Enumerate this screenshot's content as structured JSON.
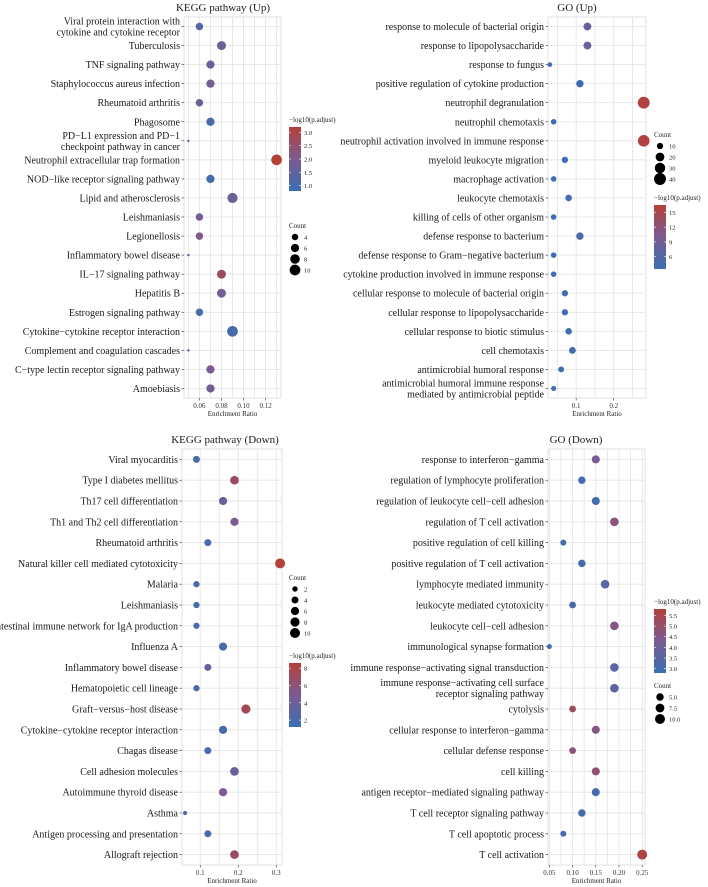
{
  "colors": {
    "low": "#3b6fb0",
    "mid": "#7b5b92",
    "high": "#b5403a",
    "grid": "#e5e5e5",
    "panel": "#ffffff"
  },
  "chart_data": [
    {
      "type": "scatter",
      "title": "KEGG pathway (Up)",
      "xlabel": "Enrichment Ratio",
      "xlim": [
        0.046,
        0.134
      ],
      "xticks": [
        0.06,
        0.08,
        0.1,
        0.12
      ],
      "xtick_labels": [
        "0.06",
        "0.08",
        "0.10",
        "0.12"
      ],
      "color_legend": {
        "title": "−log10(p.adjust)",
        "ticks": [
          "3.0",
          "2.5",
          "2.0",
          "1.5",
          "1.0"
        ],
        "min": 0.8,
        "max": 3.2
      },
      "size_legend": {
        "title": "Count",
        "values": [
          4,
          6,
          8,
          10
        ],
        "labels": [
          "4",
          "6",
          "8",
          "10"
        ],
        "min": 2,
        "max": 11
      },
      "points": [
        {
          "label": "Viral protein interaction with\ncytokine and cytokine receptor",
          "x": 0.06,
          "count": 5,
          "color": 1.3
        },
        {
          "label": "Tuberculosis",
          "x": 0.08,
          "count": 7,
          "color": 1.7
        },
        {
          "label": "TNF signaling pathway",
          "x": 0.07,
          "count": 6,
          "color": 1.8
        },
        {
          "label": "Staphylococcus aureus infection",
          "x": 0.07,
          "count": 6,
          "color": 1.9
        },
        {
          "label": "Rheumatoid arthritis",
          "x": 0.06,
          "count": 5,
          "color": 1.7
        },
        {
          "label": "Phagosome",
          "x": 0.07,
          "count": 6,
          "color": 1.1
        },
        {
          "label": "PD−L1 expression and PD−1\ncheckpoint pathway in cancer",
          "x": 0.05,
          "count": 2,
          "color": 1.0
        },
        {
          "label": "Neutrophil extracellular trap formation",
          "x": 0.13,
          "count": 10,
          "color": 3.2
        },
        {
          "label": "NOD−like receptor signaling pathway",
          "x": 0.07,
          "count": 6,
          "color": 1.0
        },
        {
          "label": "Lipid and atherosclerosis",
          "x": 0.09,
          "count": 9,
          "color": 1.7
        },
        {
          "label": "Leishmaniasis",
          "x": 0.06,
          "count": 5,
          "color": 1.9
        },
        {
          "label": "Legionellosis",
          "x": 0.06,
          "count": 5,
          "color": 2.1
        },
        {
          "label": "Inflammatory bowel disease",
          "x": 0.05,
          "count": 2,
          "color": 1.6
        },
        {
          "label": "IL−17 signaling pathway",
          "x": 0.08,
          "count": 7,
          "color": 2.7
        },
        {
          "label": "Hepatitis B",
          "x": 0.08,
          "count": 7,
          "color": 1.9
        },
        {
          "label": "Estrogen signaling pathway",
          "x": 0.06,
          "count": 5,
          "color": 1.0
        },
        {
          "label": "Cytokine−cytokine receptor interaction",
          "x": 0.09,
          "count": 10,
          "color": 1.0
        },
        {
          "label": "Complement and coagulation cascades",
          "x": 0.05,
          "count": 2,
          "color": 1.0
        },
        {
          "label": "C−type lectin receptor signaling pathway",
          "x": 0.07,
          "count": 6,
          "color": 2.0
        },
        {
          "label": "Amoebiasis",
          "x": 0.07,
          "count": 6,
          "color": 1.8
        }
      ]
    },
    {
      "type": "scatter",
      "title": "GO (Up)",
      "xlabel": "Enrichment Ratio",
      "xlim": [
        0.025,
        0.286
      ],
      "xticks": [
        0.1,
        0.2
      ],
      "xtick_labels": [
        "0.1",
        "0.2"
      ],
      "color_legend": {
        "title": "−log10(p.adjust)",
        "ticks": [
          "15",
          "12",
          "9",
          "6"
        ],
        "min": 3.5,
        "max": 16.5
      },
      "size_legend": {
        "title": "Count",
        "values": [
          10,
          20,
          30,
          40
        ],
        "labels": [
          "10",
          "20",
          "30",
          "40"
        ],
        "min": 4,
        "max": 44
      },
      "points": [
        {
          "label": "response to molecule of bacterial origin",
          "x": 0.13,
          "count": 16,
          "color": 8
        },
        {
          "label": "response to lipopolysaccharide",
          "x": 0.13,
          "count": 16,
          "color": 8
        },
        {
          "label": "response to fungus",
          "x": 0.03,
          "count": 6,
          "color": 4
        },
        {
          "label": "positive regulation of cytokine production",
          "x": 0.11,
          "count": 14,
          "color": 4
        },
        {
          "label": "neutrophil degranulation",
          "x": 0.28,
          "count": 40,
          "color": 16
        },
        {
          "label": "neutrophil chemotaxis",
          "x": 0.04,
          "count": 8,
          "color": 4
        },
        {
          "label": "neutrophil activation involved in immune response",
          "x": 0.28,
          "count": 38,
          "color": 16
        },
        {
          "label": "myeloid leukocyte migration",
          "x": 0.07,
          "count": 10,
          "color": 4
        },
        {
          "label": "macrophage activation",
          "x": 0.04,
          "count": 8,
          "color": 4
        },
        {
          "label": "leukocyte chemotaxis",
          "x": 0.08,
          "count": 11,
          "color": 4
        },
        {
          "label": "killing of cells of other organism",
          "x": 0.04,
          "count": 8,
          "color": 4
        },
        {
          "label": "defense response to bacterium",
          "x": 0.11,
          "count": 14,
          "color": 5
        },
        {
          "label": "defense response to Gram−negative bacterium",
          "x": 0.04,
          "count": 8,
          "color": 4
        },
        {
          "label": "cytokine production involved in immune response",
          "x": 0.04,
          "count": 8,
          "color": 4
        },
        {
          "label": "cellular response to molecule of bacterial origin",
          "x": 0.07,
          "count": 10,
          "color": 4
        },
        {
          "label": "cellular response to lipopolysaccharide",
          "x": 0.07,
          "count": 10,
          "color": 4
        },
        {
          "label": "cellular response to biotic stimulus",
          "x": 0.08,
          "count": 11,
          "color": 4
        },
        {
          "label": "cell chemotaxis",
          "x": 0.09,
          "count": 12,
          "color": 4
        },
        {
          "label": "antimicrobial humoral response",
          "x": 0.06,
          "count": 9,
          "color": 4
        },
        {
          "label": "antimicrobial humoral immune response\nmediated by antimicrobial peptide",
          "x": 0.04,
          "count": 7,
          "color": 4
        }
      ]
    },
    {
      "type": "scatter",
      "title": "KEGG pathway (Down)",
      "xlabel": "Enrichment Ratio",
      "xlim": [
        0.052,
        0.315
      ],
      "xticks": [
        0.1,
        0.2,
        0.3
      ],
      "xtick_labels": [
        "0.1",
        "0.2",
        "0.3"
      ],
      "color_legend": {
        "title": "−log10(p.adjust)",
        "ticks": [
          "8",
          "6",
          "4",
          "2"
        ],
        "min": 1.2,
        "max": 8.6
      },
      "size_legend": {
        "title": "Count",
        "values": [
          2,
          4,
          6,
          8,
          10
        ],
        "labels": [
          "2",
          "4",
          "6",
          "8",
          "10"
        ],
        "min": 0.5,
        "max": 11
      },
      "points": [
        {
          "label": "Viral myocarditis",
          "x": 0.09,
          "count": 4,
          "color": 2
        },
        {
          "label": "Type I diabetes mellitus",
          "x": 0.19,
          "count": 7,
          "color": 7
        },
        {
          "label": "Th17 cell differentiation",
          "x": 0.16,
          "count": 6,
          "color": 4
        },
        {
          "label": "Th1 and Th2 cell differentiation",
          "x": 0.19,
          "count": 6,
          "color": 5
        },
        {
          "label": "Rheumatoid arthritis",
          "x": 0.12,
          "count": 4,
          "color": 2
        },
        {
          "label": "Natural killer cell mediated cytotoxicity",
          "x": 0.31,
          "count": 10,
          "color": 8.5
        },
        {
          "label": "Malaria",
          "x": 0.09,
          "count": 3,
          "color": 2
        },
        {
          "label": "Leishmaniasis",
          "x": 0.09,
          "count": 3,
          "color": 2
        },
        {
          "label": "Intestinal immune network for IgA production",
          "x": 0.09,
          "count": 3,
          "color": 2
        },
        {
          "label": "Influenza A",
          "x": 0.16,
          "count": 6,
          "color": 2
        },
        {
          "label": "Inflammatory bowel disease",
          "x": 0.12,
          "count": 4,
          "color": 4
        },
        {
          "label": "Hematopoietic cell lineage",
          "x": 0.09,
          "count": 3,
          "color": 2
        },
        {
          "label": "Graft−versus−host disease",
          "x": 0.22,
          "count": 8,
          "color": 7.5
        },
        {
          "label": "Cytokine−cytokine receptor interaction",
          "x": 0.16,
          "count": 6,
          "color": 2
        },
        {
          "label": "Chagas disease",
          "x": 0.12,
          "count": 4,
          "color": 2
        },
        {
          "label": "Cell adhesion molecules",
          "x": 0.19,
          "count": 7,
          "color": 4
        },
        {
          "label": "Autoimmune thyroid disease",
          "x": 0.16,
          "count": 6,
          "color": 5
        },
        {
          "label": "Asthma",
          "x": 0.06,
          "count": 1,
          "color": 2
        },
        {
          "label": "Antigen processing and presentation",
          "x": 0.12,
          "count": 4,
          "color": 2
        },
        {
          "label": "Allograft rejection",
          "x": 0.19,
          "count": 7,
          "color": 7
        }
      ]
    },
    {
      "type": "scatter",
      "title": "GO (Down)",
      "xlabel": "Enrichment Ratio",
      "xlim": [
        0.047,
        0.256
      ],
      "xticks": [
        0.05,
        0.1,
        0.15,
        0.2,
        0.25
      ],
      "xtick_labels": [
        "0.05",
        "0.10",
        "0.15",
        "0.20",
        "0.25"
      ],
      "color_legend": {
        "title": "−log10(p.adjust)",
        "ticks": [
          "5.5",
          "5.0",
          "4.5",
          "4.0",
          "3.5",
          "3.0"
        ],
        "min": 2.8,
        "max": 5.8
      },
      "size_legend": {
        "title": "Count",
        "values": [
          5.0,
          7.5,
          10.0
        ],
        "labels": [
          "5.0",
          "7.5",
          "10.0"
        ],
        "min": 1,
        "max": 11
      },
      "points": [
        {
          "label": "response to interferon−gamma",
          "x": 0.15,
          "count": 6,
          "color": 4.2
        },
        {
          "label": "regulation of lymphocyte proliferation",
          "x": 0.12,
          "count": 5,
          "color": 3.0
        },
        {
          "label": "regulation of leukocyte cell−cell adhesion",
          "x": 0.15,
          "count": 6,
          "color": 3.0
        },
        {
          "label": "regulation of T cell activation",
          "x": 0.19,
          "count": 7,
          "color": 4.7
        },
        {
          "label": "positive regulation of cell killing",
          "x": 0.08,
          "count": 3,
          "color": 3.0
        },
        {
          "label": "positive regulation of T cell activation",
          "x": 0.12,
          "count": 5,
          "color": 3.0
        },
        {
          "label": "lymphocyte mediated immunity",
          "x": 0.17,
          "count": 7,
          "color": 3.4
        },
        {
          "label": "leukocyte mediated cytotoxicity",
          "x": 0.1,
          "count": 4,
          "color": 3.0
        },
        {
          "label": "leukocyte cell−cell adhesion",
          "x": 0.19,
          "count": 7,
          "color": 4.5
        },
        {
          "label": "immunological synapse formation",
          "x": 0.05,
          "count": 2,
          "color": 3.0
        },
        {
          "label": "immune response−activating signal transduction",
          "x": 0.19,
          "count": 7,
          "color": 3.6
        },
        {
          "label": "immune response−activating cell surface\nreceptor signaling pathway",
          "x": 0.19,
          "count": 7,
          "color": 3.6
        },
        {
          "label": "cytolysis",
          "x": 0.1,
          "count": 4,
          "color": 5.2
        },
        {
          "label": "cellular response to interferon−gamma",
          "x": 0.15,
          "count": 6,
          "color": 4.5
        },
        {
          "label": "cellular defense response",
          "x": 0.1,
          "count": 4,
          "color": 4.7
        },
        {
          "label": "cell killing",
          "x": 0.15,
          "count": 6,
          "color": 4.8
        },
        {
          "label": "antigen receptor−mediated signaling pathway",
          "x": 0.15,
          "count": 6,
          "color": 3.0
        },
        {
          "label": "T cell receptor signaling pathway",
          "x": 0.12,
          "count": 5,
          "color": 3.0
        },
        {
          "label": "T cell apoptotic process",
          "x": 0.08,
          "count": 3,
          "color": 3.0
        },
        {
          "label": "T cell activation",
          "x": 0.25,
          "count": 10,
          "color": 5.6
        }
      ]
    }
  ]
}
